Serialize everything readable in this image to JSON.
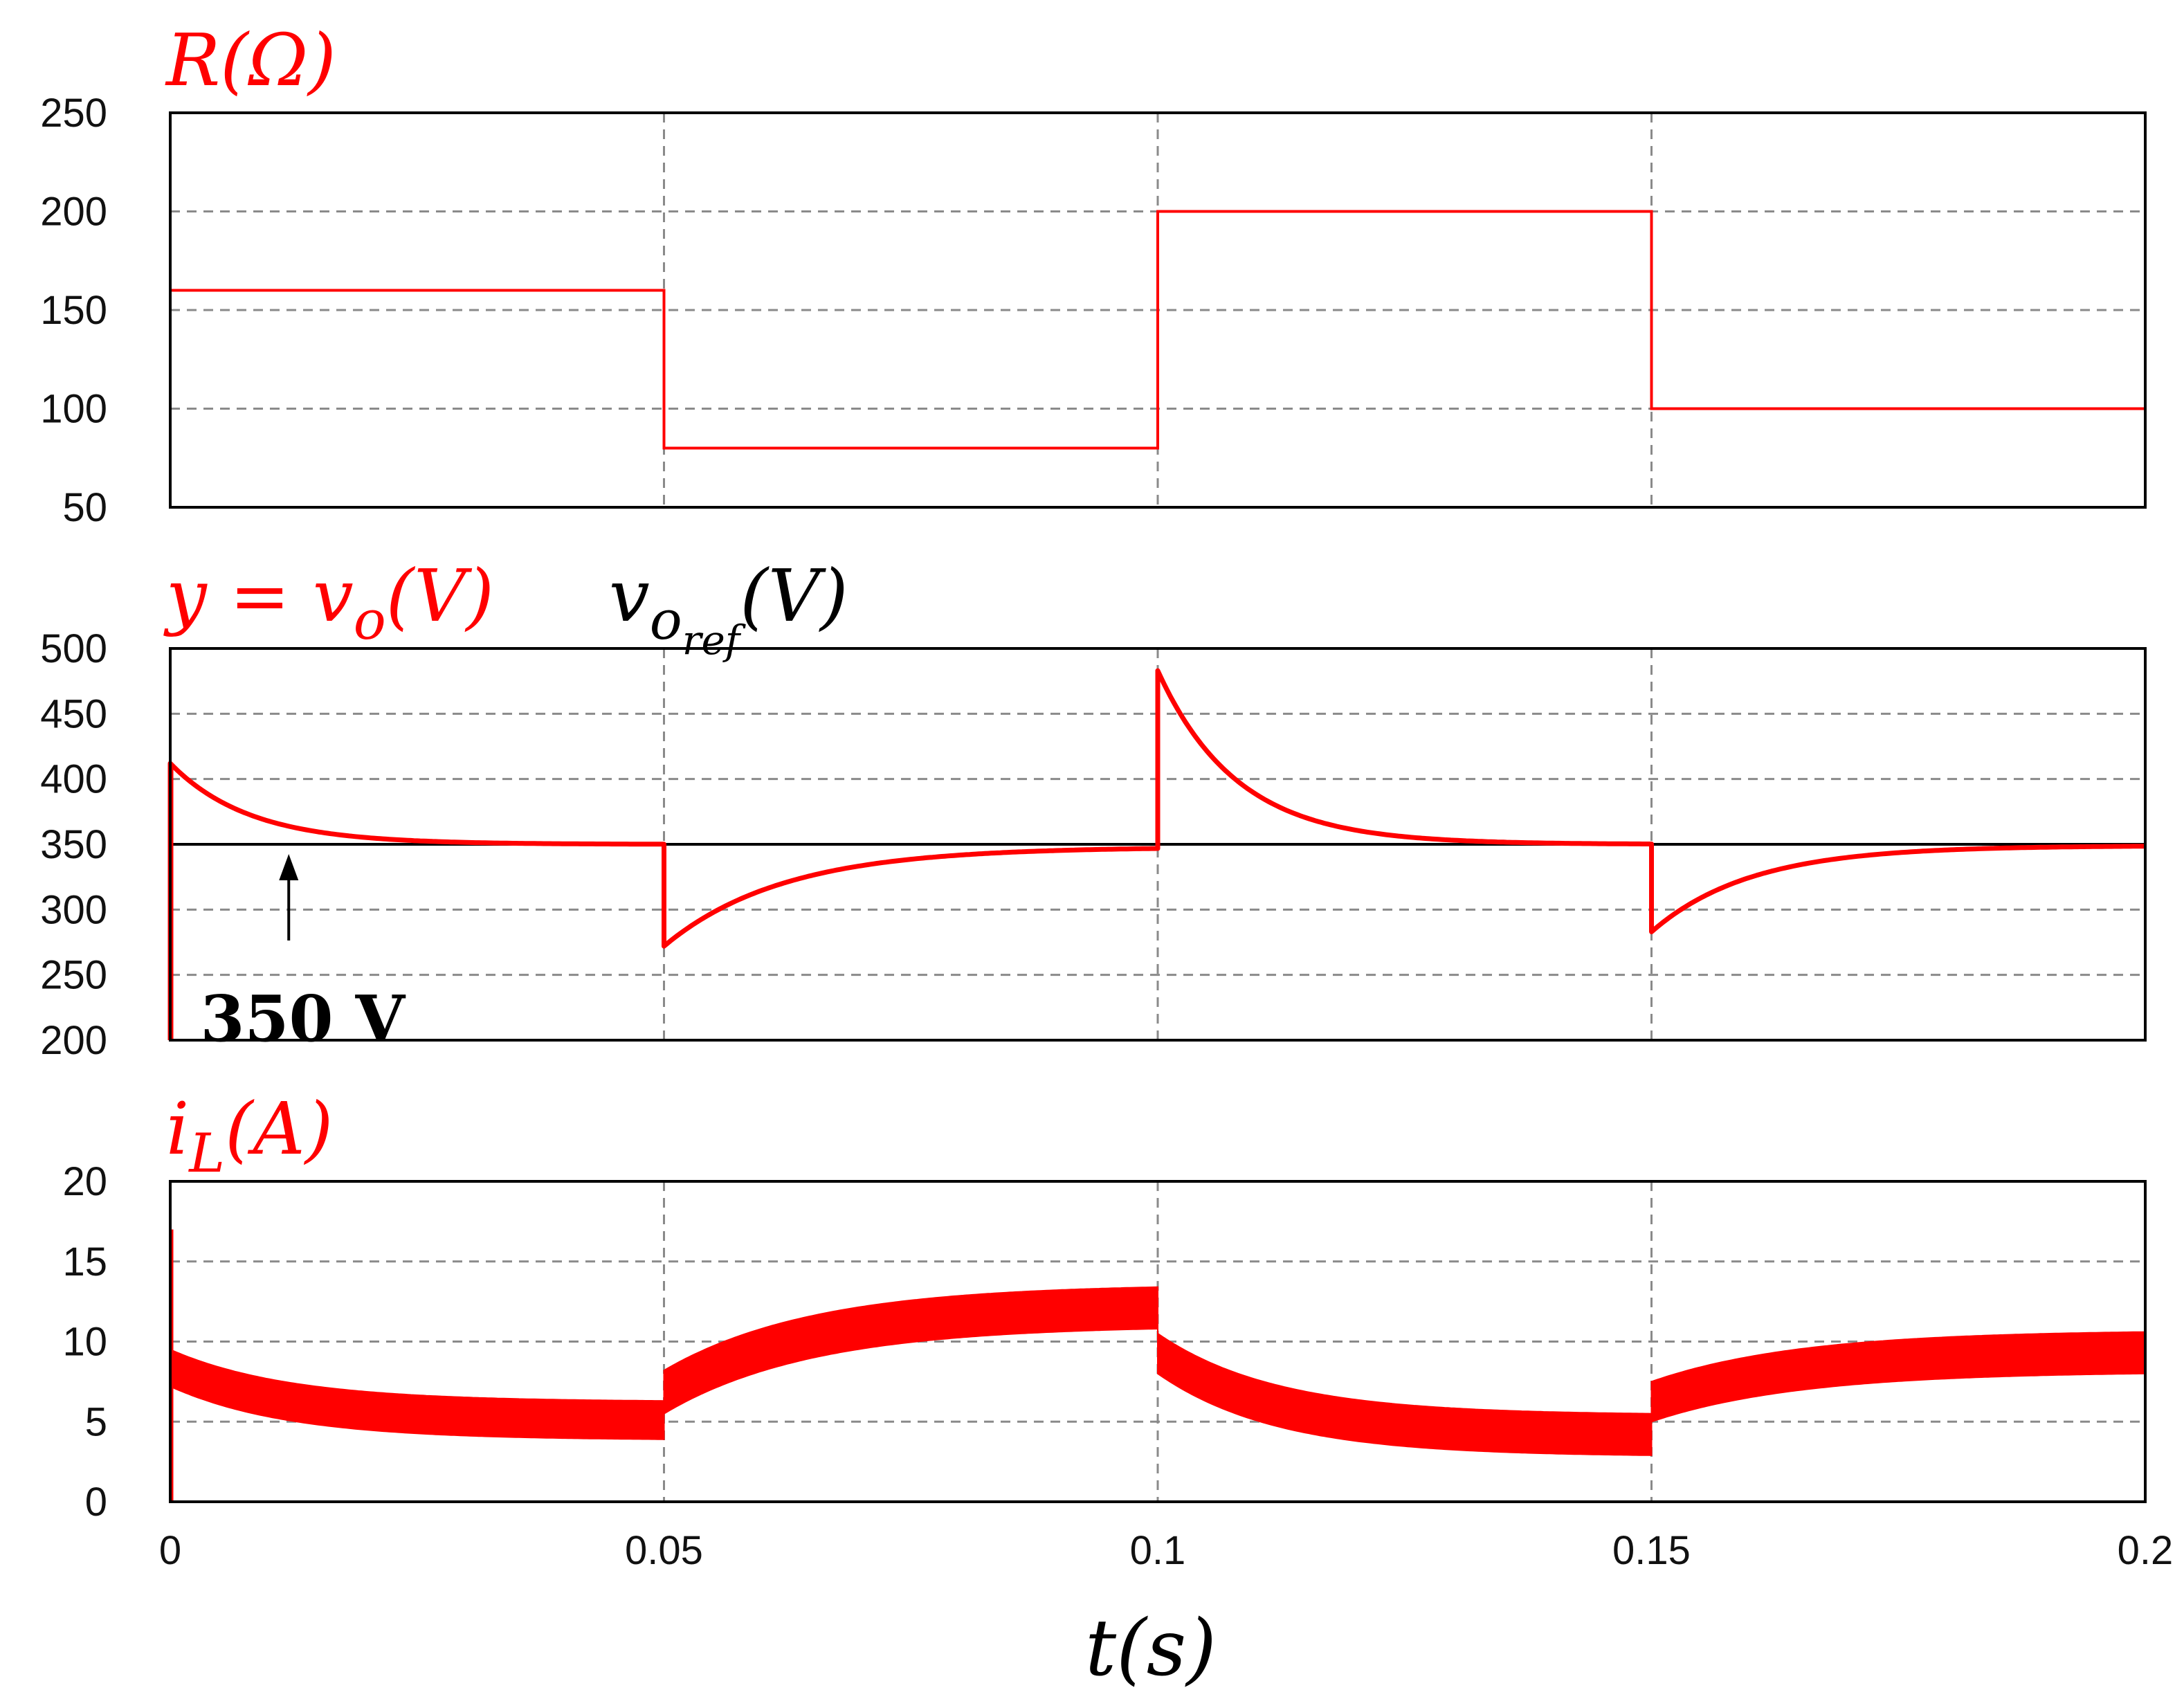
{
  "colors": {
    "signal": "#ff0000",
    "reference": "#000000",
    "grid": "#8a8a8a"
  },
  "chart_data": [
    {
      "type": "line",
      "ylabel": "R(Ω)",
      "ylim": [
        50,
        250
      ],
      "yticks": [
        "250",
        "200",
        "150",
        "100",
        "50"
      ],
      "xlim": [
        0,
        0.2
      ],
      "grid": true,
      "series": [
        {
          "kind": "step",
          "color": "#ff0000",
          "segments": [
            {
              "t0": 0,
              "t1": 0.05,
              "value": 160
            },
            {
              "t0": 0.05,
              "t1": 0.1,
              "value": 80
            },
            {
              "t0": 0.1,
              "t1": 0.15,
              "value": 200
            },
            {
              "t0": 0.15,
              "t1": 0.2,
              "value": 100
            }
          ]
        }
      ]
    },
    {
      "type": "line",
      "ylabel": "y = v_o(V)",
      "ref_label": "v_oref(V)",
      "ylim": [
        200,
        500
      ],
      "yticks": [
        "500",
        "450",
        "400",
        "350",
        "300",
        "250",
        "200"
      ],
      "xlim": [
        0,
        0.2
      ],
      "grid": true,
      "reference": {
        "value": 350,
        "color": "#000000"
      },
      "annotation": {
        "text": "350 V",
        "t": 0.012,
        "value": 350
      },
      "series": [
        {
          "kind": "transient",
          "color": "#ff0000",
          "start_value": 200,
          "segments": [
            {
              "t0": 0,
              "t1": 0.05,
              "peak": 412,
              "settle": 350,
              "tau": 0.008
            },
            {
              "t0": 0.05,
              "t1": 0.1,
              "peak": 272,
              "settle": 348,
              "tau": 0.012
            },
            {
              "t0": 0.1,
              "t1": 0.15,
              "peak": 483,
              "settle": 350,
              "tau": 0.008
            },
            {
              "t0": 0.15,
              "t1": 0.2,
              "peak": 283,
              "settle": 349,
              "tau": 0.01
            }
          ]
        }
      ]
    },
    {
      "type": "area",
      "ylabel": "i_L(A)",
      "ylim": [
        0,
        20
      ],
      "yticks": [
        "20",
        "15",
        "10",
        "5",
        "0"
      ],
      "xlim": [
        0,
        0.2
      ],
      "xticks": [
        "0",
        "0.05",
        "0.1",
        "0.15",
        "0.2"
      ],
      "xlabel": "t(s)",
      "grid": true,
      "series": [
        {
          "kind": "band",
          "color": "#ff0000",
          "initial_spike": 17,
          "segments": [
            {
              "t0": 0,
              "t1": 0.05,
              "start_upper": 9.5,
              "start_lower": 7.2,
              "end_upper": 6.3,
              "end_lower": 3.9,
              "tau": 0.012
            },
            {
              "t0": 0.05,
              "t1": 0.1,
              "start_upper": 8.2,
              "start_lower": 5.5,
              "end_upper": 13.4,
              "end_lower": 10.8,
              "tau": 0.015
            },
            {
              "t0": 0.1,
              "t1": 0.15,
              "start_upper": 10.5,
              "start_lower": 8.0,
              "end_upper": 5.5,
              "end_lower": 2.9,
              "tau": 0.012
            },
            {
              "t0": 0.15,
              "t1": 0.2,
              "start_upper": 7.5,
              "start_lower": 5.0,
              "end_upper": 10.6,
              "end_lower": 8.0,
              "tau": 0.015
            }
          ]
        }
      ]
    }
  ]
}
